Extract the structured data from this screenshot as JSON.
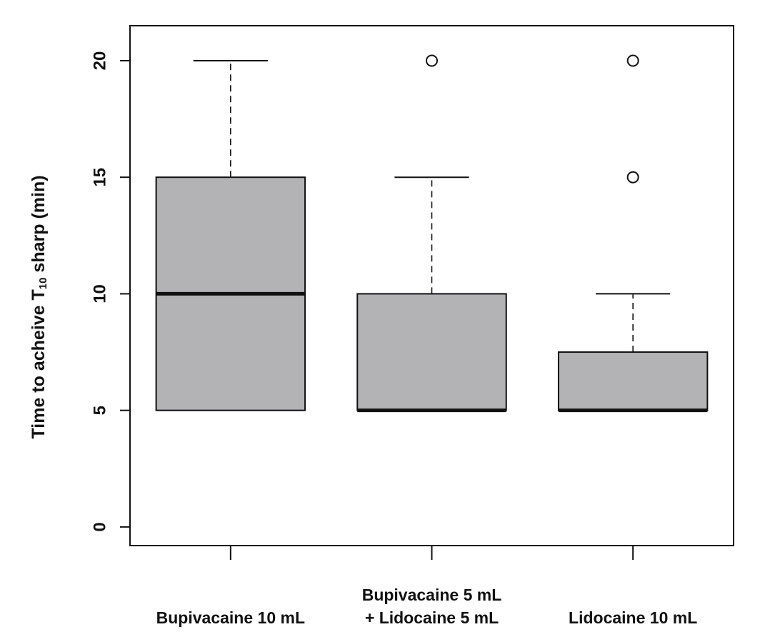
{
  "chart_data": {
    "type": "boxplot",
    "title": "",
    "xlabel": "",
    "ylabel": {
      "prefix": "Time to acheive T",
      "subscript": "10",
      "suffix": " sharp (min)"
    },
    "ylim": [
      -0.8,
      21.5
    ],
    "yticks": [
      "0",
      "5",
      "10",
      "15",
      "20"
    ],
    "colors": {
      "box_fill": "#b3b3b6",
      "stroke": "#111111"
    },
    "grid": false,
    "categories": [
      {
        "lines": [
          "Bupivacaine 10 mL"
        ]
      },
      {
        "lines": [
          "Bupivacaine 5 mL",
          "+ Lidocaine 5 mL"
        ]
      },
      {
        "lines": [
          "Lidocaine 10 mL"
        ]
      }
    ],
    "boxes": [
      {
        "whisker_low": 5,
        "q1": 5,
        "median": 10,
        "q3": 15,
        "whisker_high": 20,
        "outliers": []
      },
      {
        "whisker_low": 5,
        "q1": 5,
        "median": 5,
        "q3": 10,
        "whisker_high": 15,
        "outliers": [
          20
        ]
      },
      {
        "whisker_low": 5,
        "q1": 5,
        "median": 5,
        "q3": 7.5,
        "whisker_high": 10,
        "outliers": [
          15,
          20
        ]
      }
    ]
  }
}
